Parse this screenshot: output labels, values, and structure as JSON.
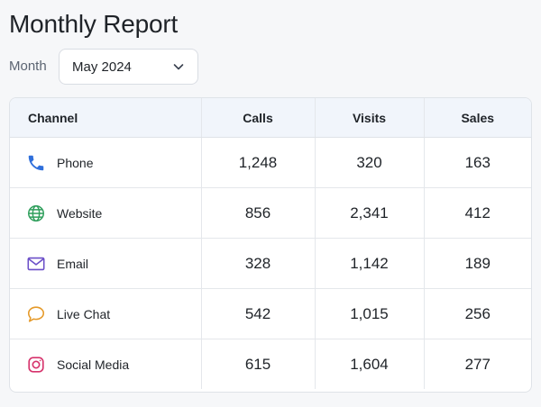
{
  "header": {
    "title": "Monthly Report"
  },
  "filter": {
    "label": "Month",
    "selected": "May 2024"
  },
  "table": {
    "columns": [
      "Channel",
      "Calls",
      "Visits",
      "Sales"
    ],
    "rows": [
      {
        "channel": "Phone",
        "icon": "phone-icon",
        "calls": "1,248",
        "visits": "320",
        "sales": "163"
      },
      {
        "channel": "Website",
        "icon": "globe-icon",
        "calls": "856",
        "visits": "2,341",
        "sales": "412"
      },
      {
        "channel": "Email",
        "icon": "envelope-icon",
        "calls": "328",
        "visits": "1,142",
        "sales": "189"
      },
      {
        "channel": "Live Chat",
        "icon": "chat-bubble-icon",
        "calls": "542",
        "visits": "1,015",
        "sales": "256"
      },
      {
        "channel": "Social Media",
        "icon": "instagram-icon",
        "calls": "615",
        "visits": "1,604",
        "sales": "277"
      }
    ]
  },
  "colors": {
    "phone": "#2f6fdb",
    "website": "#2e9e5b",
    "email": "#6b4fc8",
    "chat": "#e59a2a",
    "social": "#d6336c",
    "header_bg": "#f1f5fb"
  }
}
